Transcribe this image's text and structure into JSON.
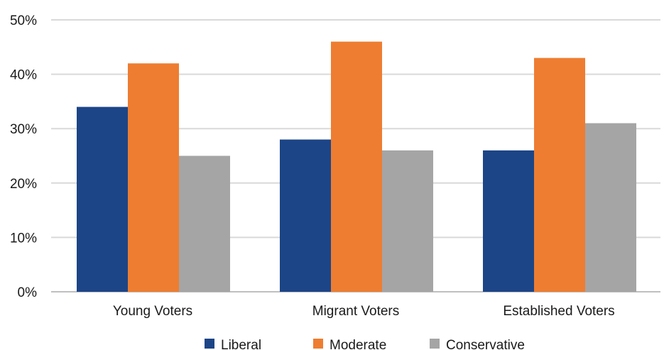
{
  "chart_data": {
    "type": "bar",
    "categories": [
      "Young Voters",
      "Migrant Voters",
      "Established Voters"
    ],
    "series": [
      {
        "name": "Liberal",
        "values": [
          34,
          28,
          26
        ],
        "color": "#1c4587"
      },
      {
        "name": "Moderate",
        "values": [
          42,
          46,
          43
        ],
        "color": "#ee7d31"
      },
      {
        "name": "Conservative",
        "values": [
          25,
          26,
          31
        ],
        "color": "#a5a5a5"
      }
    ],
    "y_ticks": [
      "0%",
      "10%",
      "20%",
      "30%",
      "40%",
      "50%"
    ],
    "ylim": [
      0,
      50
    ],
    "grid": true,
    "legend_position": "bottom"
  }
}
